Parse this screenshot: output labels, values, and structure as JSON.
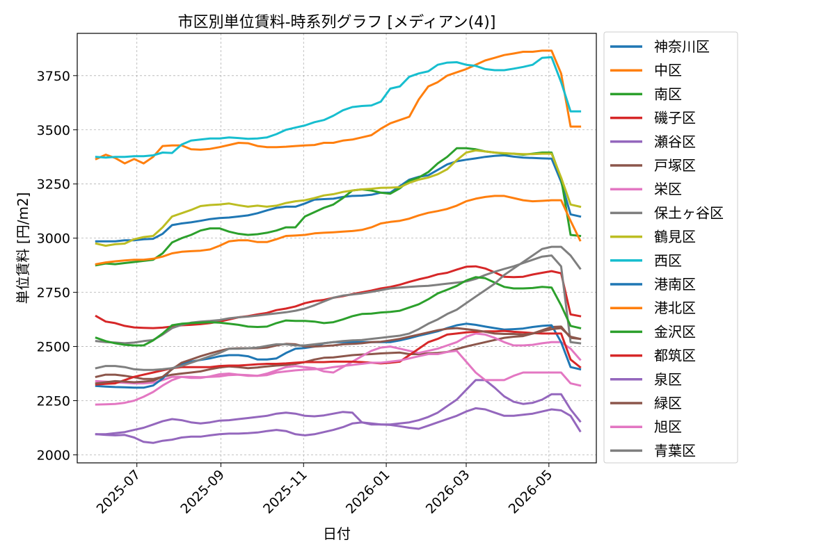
{
  "chart_data": {
    "type": "line",
    "title": "市区別単位賃料-時系列グラフ [メディアン(4)]",
    "xlabel": "日付",
    "ylabel": "単位賃料 [円/m2]",
    "x_tick_labels": [
      "2025-07",
      "2025-09",
      "2025-11",
      "2026-01",
      "2026-03",
      "2026-05"
    ],
    "x_tick_dates": [
      "2025-07-01",
      "2025-09-01",
      "2025-11-01",
      "2026-01-01",
      "2026-03-01",
      "2026-05-01"
    ],
    "xlim": [
      "2025-05-18",
      "2026-06-05"
    ],
    "y_ticks": [
      2000,
      2250,
      2500,
      2750,
      3000,
      3250,
      3500,
      3750
    ],
    "ylim": [
      1963,
      3945
    ],
    "grid": true,
    "legend_position": "outside-right",
    "x": [
      "2025-06-01",
      "2025-06-08",
      "2025-06-15",
      "2025-06-22",
      "2025-06-29",
      "2025-07-06",
      "2025-07-13",
      "2025-07-20",
      "2025-07-27",
      "2025-08-03",
      "2025-08-10",
      "2025-08-17",
      "2025-08-24",
      "2025-08-31",
      "2025-09-07",
      "2025-09-14",
      "2025-09-21",
      "2025-09-28",
      "2025-10-05",
      "2025-10-12",
      "2025-10-19",
      "2025-10-26",
      "2025-11-02",
      "2025-11-09",
      "2025-11-16",
      "2025-11-23",
      "2025-11-30",
      "2025-12-07",
      "2025-12-14",
      "2025-12-21",
      "2025-12-28",
      "2026-01-04",
      "2026-01-11",
      "2026-01-18",
      "2026-01-25",
      "2026-02-01",
      "2026-02-08",
      "2026-02-15",
      "2026-02-22",
      "2026-03-01",
      "2026-03-08",
      "2026-03-15",
      "2026-03-22",
      "2026-03-29",
      "2026-04-05",
      "2026-04-12",
      "2026-04-19",
      "2026-04-26",
      "2026-05-03",
      "2026-05-10",
      "2026-05-17",
      "2026-05-24"
    ],
    "series": [
      {
        "name": "神奈川区",
        "color": "#1f77b4",
        "values": [
          2985,
          2985,
          2985,
          2990,
          2990,
          2995,
          2997,
          3020,
          3060,
          3068,
          3073,
          3080,
          3088,
          3093,
          3095,
          3100,
          3105,
          3115,
          3128,
          3140,
          3145,
          3145,
          3160,
          3178,
          3180,
          3182,
          3190,
          3195,
          3196,
          3200,
          3210,
          3210,
          3240,
          3270,
          3283,
          3290,
          3315,
          3340,
          3355,
          3362,
          3368,
          3375,
          3380,
          3382,
          3376,
          3372,
          3370,
          3368,
          3367,
          3260,
          3110,
          3100
        ]
      },
      {
        "name": "中区",
        "color": "#ff7f0e",
        "values": [
          3365,
          3385,
          3370,
          3345,
          3365,
          3345,
          3375,
          3425,
          3428,
          3428,
          3410,
          3408,
          3412,
          3420,
          3430,
          3440,
          3438,
          3425,
          3420,
          3420,
          3422,
          3425,
          3428,
          3430,
          3440,
          3440,
          3450,
          3455,
          3465,
          3475,
          3505,
          3530,
          3545,
          3560,
          3640,
          3700,
          3720,
          3750,
          3765,
          3780,
          3800,
          3820,
          3832,
          3845,
          3852,
          3860,
          3860,
          3865,
          3865,
          3760,
          3515,
          3515
        ]
      },
      {
        "name": "南区",
        "color": "#2ca02c",
        "values": [
          2875,
          2883,
          2880,
          2885,
          2890,
          2895,
          2900,
          2930,
          2980,
          3000,
          3015,
          3035,
          3045,
          3045,
          3030,
          3020,
          3015,
          3018,
          3025,
          3035,
          3050,
          3050,
          3100,
          3120,
          3140,
          3155,
          3185,
          3220,
          3225,
          3220,
          3210,
          3205,
          3230,
          3265,
          3280,
          3305,
          3345,
          3375,
          3415,
          3415,
          3410,
          3400,
          3395,
          3390,
          3390,
          3385,
          3390,
          3395,
          3395,
          3275,
          3015,
          3010
        ]
      },
      {
        "name": "磯子区",
        "color": "#d62728",
        "values": [
          2640,
          2615,
          2608,
          2595,
          2588,
          2586,
          2585,
          2587,
          2592,
          2598,
          2600,
          2603,
          2608,
          2615,
          2625,
          2635,
          2640,
          2648,
          2655,
          2668,
          2675,
          2685,
          2700,
          2710,
          2715,
          2725,
          2732,
          2742,
          2750,
          2758,
          2768,
          2775,
          2785,
          2798,
          2810,
          2820,
          2833,
          2840,
          2855,
          2868,
          2870,
          2860,
          2842,
          2822,
          2820,
          2822,
          2832,
          2840,
          2848,
          2838,
          2648,
          2640
        ]
      },
      {
        "name": "瀬谷区",
        "color": "#9467bd",
        "values": [
          2095,
          2092,
          2090,
          2092,
          2080,
          2060,
          2055,
          2065,
          2070,
          2080,
          2084,
          2084,
          2090,
          2095,
          2098,
          2098,
          2100,
          2103,
          2110,
          2115,
          2110,
          2095,
          2090,
          2095,
          2105,
          2115,
          2128,
          2145,
          2150,
          2145,
          2140,
          2138,
          2132,
          2125,
          2120,
          2135,
          2150,
          2165,
          2180,
          2200,
          2215,
          2210,
          2195,
          2180,
          2180,
          2185,
          2190,
          2200,
          2210,
          2205,
          2180,
          2110
        ]
      },
      {
        "name": "戸塚区",
        "color": "#8c564b",
        "values": [
          2360,
          2370,
          2370,
          2365,
          2358,
          2350,
          2350,
          2360,
          2370,
          2375,
          2380,
          2385,
          2395,
          2403,
          2408,
          2405,
          2400,
          2403,
          2408,
          2412,
          2415,
          2420,
          2428,
          2440,
          2448,
          2450,
          2455,
          2460,
          2463,
          2465,
          2468,
          2470,
          2472,
          2465,
          2465,
          2468,
          2470,
          2475,
          2488,
          2500,
          2510,
          2520,
          2530,
          2540,
          2545,
          2548,
          2560,
          2575,
          2590,
          2592,
          2540,
          2535
        ]
      },
      {
        "name": "栄区",
        "color": "#e377c2",
        "values": [
          2340,
          2338,
          2335,
          2332,
          2330,
          2330,
          2333,
          2345,
          2360,
          2360,
          2355,
          2355,
          2362,
          2372,
          2375,
          2370,
          2365,
          2365,
          2375,
          2390,
          2405,
          2410,
          2405,
          2400,
          2385,
          2380,
          2405,
          2430,
          2455,
          2480,
          2495,
          2500,
          2490,
          2480,
          2470,
          2480,
          2490,
          2505,
          2520,
          2545,
          2560,
          2555,
          2540,
          2520,
          2505,
          2505,
          2508,
          2515,
          2520,
          2520,
          2490,
          2440
        ]
      },
      {
        "name": "保土ヶ谷区",
        "color": "#7f7f7f",
        "values": [
          2525,
          2520,
          2518,
          2515,
          2518,
          2525,
          2530,
          2555,
          2585,
          2600,
          2610,
          2615,
          2618,
          2622,
          2630,
          2635,
          2638,
          2643,
          2648,
          2653,
          2658,
          2665,
          2675,
          2690,
          2708,
          2725,
          2735,
          2740,
          2745,
          2752,
          2760,
          2768,
          2772,
          2775,
          2778,
          2780,
          2785,
          2790,
          2795,
          2800,
          2812,
          2830,
          2845,
          2858,
          2870,
          2885,
          2900,
          2915,
          2920,
          2870,
          2520,
          2515
        ]
      },
      {
        "name": "鶴見区",
        "color": "#bcbd22",
        "values": [
          2975,
          2965,
          2972,
          2975,
          2995,
          3005,
          3010,
          3050,
          3100,
          3115,
          3130,
          3148,
          3153,
          3155,
          3160,
          3152,
          3145,
          3150,
          3145,
          3150,
          3162,
          3170,
          3175,
          3185,
          3197,
          3203,
          3213,
          3220,
          3225,
          3228,
          3232,
          3233,
          3235,
          3255,
          3270,
          3280,
          3295,
          3318,
          3360,
          3395,
          3405,
          3400,
          3395,
          3392,
          3390,
          3388,
          3388,
          3390,
          3390,
          3280,
          3155,
          3145
        ]
      },
      {
        "name": "西区",
        "color": "#17becf",
        "values": [
          3375,
          3372,
          3375,
          3375,
          3378,
          3378,
          3382,
          3395,
          3393,
          3432,
          3450,
          3455,
          3460,
          3460,
          3465,
          3462,
          3458,
          3460,
          3465,
          3480,
          3500,
          3510,
          3520,
          3535,
          3545,
          3565,
          3590,
          3605,
          3610,
          3612,
          3630,
          3690,
          3700,
          3745,
          3760,
          3770,
          3800,
          3810,
          3812,
          3800,
          3795,
          3780,
          3775,
          3775,
          3782,
          3790,
          3800,
          3832,
          3835,
          3720,
          3585,
          3585
        ]
      },
      {
        "name": "港南区",
        "color": "#1f77b4",
        "values": [
          2318,
          2315,
          2313,
          2312,
          2310,
          2310,
          2320,
          2352,
          2398,
          2420,
          2430,
          2438,
          2445,
          2455,
          2460,
          2460,
          2455,
          2440,
          2440,
          2445,
          2470,
          2490,
          2493,
          2500,
          2515,
          2520,
          2520,
          2520,
          2520,
          2520,
          2520,
          2520,
          2528,
          2538,
          2550,
          2560,
          2570,
          2585,
          2598,
          2605,
          2600,
          2592,
          2585,
          2578,
          2580,
          2583,
          2590,
          2595,
          2598,
          2520,
          2405,
          2395
        ]
      },
      {
        "name": "港北区",
        "color": "#ff7f0e",
        "values": [
          2880,
          2888,
          2893,
          2897,
          2900,
          2900,
          2905,
          2915,
          2930,
          2937,
          2940,
          2942,
          2948,
          2965,
          2985,
          2990,
          2990,
          2982,
          2982,
          2995,
          3010,
          3012,
          3015,
          3022,
          3025,
          3027,
          3030,
          3033,
          3038,
          3050,
          3068,
          3075,
          3080,
          3090,
          3105,
          3117,
          3125,
          3135,
          3150,
          3170,
          3182,
          3190,
          3195,
          3195,
          3185,
          3175,
          3170,
          3172,
          3175,
          3175,
          3080,
          2990
        ]
      },
      {
        "name": "金沢区",
        "color": "#2ca02c",
        "values": [
          2540,
          2525,
          2515,
          2508,
          2505,
          2505,
          2528,
          2560,
          2598,
          2605,
          2608,
          2610,
          2612,
          2610,
          2605,
          2600,
          2592,
          2590,
          2592,
          2608,
          2620,
          2618,
          2618,
          2615,
          2608,
          2612,
          2625,
          2640,
          2650,
          2652,
          2657,
          2660,
          2665,
          2680,
          2695,
          2718,
          2745,
          2762,
          2780,
          2805,
          2820,
          2815,
          2795,
          2775,
          2768,
          2768,
          2770,
          2775,
          2772,
          2690,
          2595,
          2585
        ]
      },
      {
        "name": "都筑区",
        "color": "#d62728",
        "values": [
          2325,
          2328,
          2330,
          2345,
          2360,
          2370,
          2380,
          2390,
          2400,
          2405,
          2405,
          2405,
          2405,
          2410,
          2412,
          2412,
          2415,
          2418,
          2420,
          2420,
          2422,
          2425,
          2428,
          2428,
          2428,
          2430,
          2430,
          2430,
          2428,
          2425,
          2422,
          2425,
          2430,
          2460,
          2490,
          2520,
          2535,
          2555,
          2560,
          2565,
          2568,
          2570,
          2570,
          2572,
          2568,
          2565,
          2562,
          2560,
          2560,
          2560,
          2440,
          2405
        ]
      },
      {
        "name": "泉区",
        "color": "#9467bd",
        "values": [
          2095,
          2095,
          2100,
          2105,
          2115,
          2125,
          2140,
          2155,
          2165,
          2160,
          2150,
          2145,
          2150,
          2158,
          2160,
          2165,
          2170,
          2175,
          2180,
          2190,
          2195,
          2190,
          2180,
          2178,
          2182,
          2190,
          2198,
          2195,
          2150,
          2140,
          2140,
          2140,
          2145,
          2150,
          2160,
          2175,
          2195,
          2225,
          2255,
          2300,
          2345,
          2345,
          2310,
          2270,
          2245,
          2235,
          2240,
          2255,
          2280,
          2280,
          2210,
          2155
        ]
      },
      {
        "name": "緑区",
        "color": "#8c564b",
        "values": [
          2330,
          2335,
          2340,
          2338,
          2335,
          2338,
          2342,
          2360,
          2395,
          2425,
          2440,
          2455,
          2468,
          2480,
          2490,
          2492,
          2492,
          2492,
          2495,
          2505,
          2512,
          2510,
          2500,
          2500,
          2502,
          2505,
          2510,
          2512,
          2515,
          2520,
          2522,
          2528,
          2535,
          2545,
          2555,
          2565,
          2575,
          2582,
          2585,
          2580,
          2575,
          2568,
          2560,
          2558,
          2558,
          2555,
          2560,
          2570,
          2580,
          2585,
          2545,
          2535
        ]
      },
      {
        "name": "旭区",
        "color": "#e377c2",
        "values": [
          2232,
          2233,
          2235,
          2240,
          2250,
          2268,
          2290,
          2320,
          2345,
          2360,
          2360,
          2358,
          2360,
          2362,
          2368,
          2370,
          2368,
          2365,
          2368,
          2380,
          2385,
          2390,
          2393,
          2395,
          2398,
          2405,
          2410,
          2415,
          2420,
          2425,
          2425,
          2430,
          2435,
          2445,
          2455,
          2465,
          2465,
          2475,
          2480,
          2430,
          2380,
          2345,
          2345,
          2345,
          2365,
          2380,
          2380,
          2380,
          2380,
          2380,
          2330,
          2320
        ]
      },
      {
        "name": "青葉区",
        "color": "#7f7f7f",
        "values": [
          2400,
          2410,
          2410,
          2405,
          2395,
          2392,
          2392,
          2395,
          2400,
          2410,
          2425,
          2440,
          2455,
          2470,
          2490,
          2490,
          2492,
          2495,
          2503,
          2510,
          2510,
          2505,
          2505,
          2510,
          2515,
          2520,
          2525,
          2528,
          2530,
          2535,
          2540,
          2545,
          2550,
          2560,
          2580,
          2605,
          2625,
          2650,
          2670,
          2700,
          2730,
          2760,
          2790,
          2830,
          2860,
          2890,
          2920,
          2950,
          2960,
          2960,
          2920,
          2860
        ]
      }
    ]
  }
}
